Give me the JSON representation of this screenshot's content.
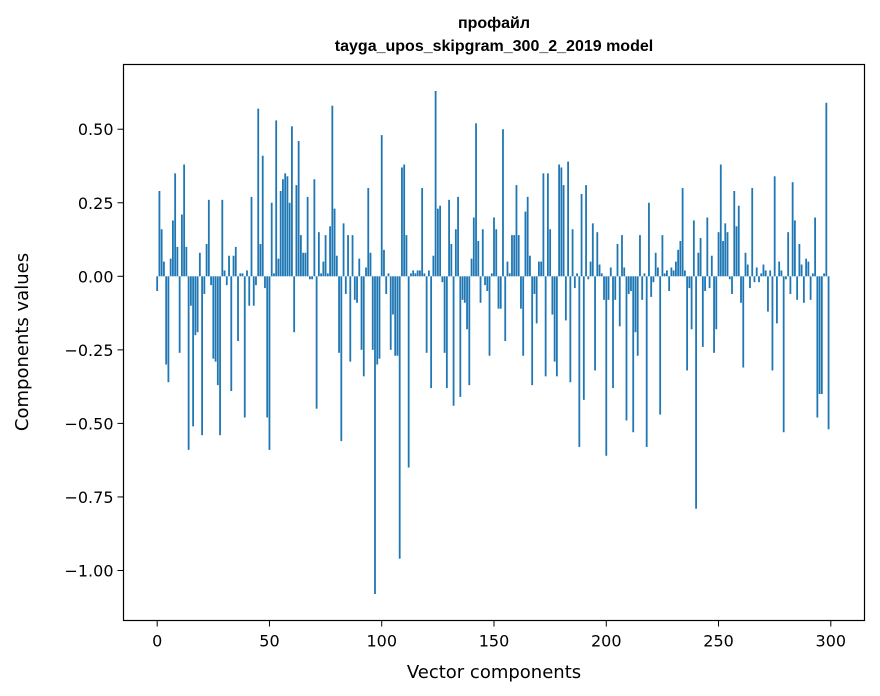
{
  "chart_data": {
    "type": "bar",
    "title": "профайл",
    "subtitle": "tayga_upos_skipgram_300_2_2019 model",
    "xlabel": "Vector components",
    "ylabel": "Components values",
    "xlim": [
      -15,
      315
    ],
    "ylim": [
      -1.17,
      0.72
    ],
    "xticks": [
      0,
      50,
      100,
      150,
      200,
      250,
      300
    ],
    "yticks": [
      -1.0,
      -0.75,
      -0.5,
      -0.25,
      0.0,
      0.25,
      0.5
    ],
    "ytick_labels": [
      "−1.00",
      "−0.75",
      "−0.50",
      "−0.25",
      "0.00",
      "0.25",
      "0.50"
    ],
    "grid": false,
    "bar_color": "#1f77b4",
    "values": [
      -0.05,
      0.29,
      0.16,
      0.05,
      -0.3,
      -0.36,
      0.06,
      0.19,
      0.35,
      0.1,
      -0.26,
      0.21,
      0.38,
      0.1,
      -0.59,
      -0.1,
      -0.51,
      -0.2,
      -0.19,
      0.08,
      -0.54,
      -0.06,
      0.11,
      0.26,
      -0.03,
      -0.28,
      -0.29,
      -0.37,
      -0.54,
      0.26,
      0.02,
      -0.03,
      0.07,
      -0.39,
      0.07,
      0.1,
      -0.22,
      0.01,
      0.01,
      -0.48,
      0.02,
      -0.1,
      0.27,
      -0.1,
      -0.03,
      0.57,
      0.11,
      0.41,
      -0.04,
      -0.48,
      -0.59,
      0.25,
      0.01,
      0.53,
      0.06,
      0.29,
      0.33,
      0.35,
      0.34,
      0.25,
      0.51,
      -0.19,
      0.31,
      0.46,
      0.14,
      0.08,
      0.08,
      0.27,
      -0.01,
      -0.01,
      0.33,
      -0.45,
      0.15,
      0.01,
      0.05,
      0.14,
      0.01,
      0.17,
      0.58,
      0.23,
      0.07,
      -0.26,
      -0.56,
      0.18,
      -0.06,
      0.14,
      -0.29,
      0.14,
      -0.08,
      -0.09,
      0.06,
      -0.25,
      -0.34,
      0.03,
      0.3,
      0.08,
      -0.25,
      -1.08,
      -0.3,
      -0.28,
      0.48,
      0.09,
      -0.06,
      0.01,
      -0.25,
      -0.13,
      -0.27,
      -0.27,
      -0.96,
      0.37,
      0.38,
      0.14,
      -0.65,
      0.01,
      0.02,
      0.01,
      0.02,
      0.02,
      0.3,
      0.01,
      -0.26,
      0.02,
      -0.38,
      0.07,
      0.63,
      0.23,
      0.24,
      -0.02,
      -0.26,
      -0.38,
      0.26,
      0.11,
      -0.44,
      0.16,
      0.27,
      -0.41,
      -0.08,
      -0.09,
      -0.18,
      -0.37,
      0.06,
      0.2,
      0.52,
      0.12,
      -0.09,
      0.16,
      -0.03,
      -0.05,
      -0.27,
      0.01,
      0.2,
      0.16,
      -0.11,
      -0.11,
      0.5,
      -0.22,
      0.05,
      0.01,
      0.14,
      0.14,
      0.31,
      0.14,
      -0.11,
      -0.27,
      0.22,
      0.27,
      0.07,
      -0.37,
      -0.06,
      -0.16,
      0.05,
      0.05,
      0.35,
      -0.34,
      0.35,
      0.16,
      -0.13,
      -0.29,
      -0.34,
      0.38,
      0.37,
      0.31,
      -0.15,
      0.39,
      -0.36,
      0.16,
      -0.04,
      0.01,
      -0.58,
      0.28,
      -0.42,
      0.31,
      -0.01,
      0.05,
      0.18,
      -0.32,
      0.15,
      0.04,
      0.01,
      -0.08,
      -0.61,
      -0.08,
      0.03,
      -0.38,
      -0.08,
      0.11,
      -0.17,
      0.14,
      0.03,
      -0.49,
      -0.06,
      -0.05,
      -0.53,
      -0.19,
      -0.27,
      0.14,
      -0.08,
      0.01,
      -0.58,
      0.25,
      -0.07,
      -0.02,
      0.08,
      0.03,
      -0.47,
      0.14,
      0.01,
      0.02,
      -0.05,
      0.03,
      0.02,
      0.05,
      0.09,
      0.12,
      0.3,
      0.02,
      -0.32,
      -0.04,
      -0.18,
      0.19,
      -0.79,
      0.08,
      0.13,
      -0.24,
      -0.05,
      0.2,
      -0.04,
      0.07,
      -0.26,
      -0.18,
      0.15,
      0.38,
      0.12,
      0.18,
      0.15,
      -0.01,
      -0.06,
      0.29,
      0.17,
      0.24,
      -0.09,
      -0.31,
      0.08,
      0.04,
      -0.04,
      0.3,
      -0.02,
      0.03,
      -0.02,
      0.01,
      0.04,
      0.02,
      -0.12,
      0.02,
      -0.32,
      0.34,
      -0.16,
      0.05,
      0.02,
      -0.53,
      -0.01,
      0.15,
      -0.06,
      0.32,
      0.19,
      -0.08,
      0.11,
      0.04,
      -0.09,
      0.06,
      0.05,
      -0.08,
      0.01,
      0.2,
      -0.48,
      -0.4,
      -0.4,
      0.01,
      0.59,
      -0.52
    ]
  }
}
